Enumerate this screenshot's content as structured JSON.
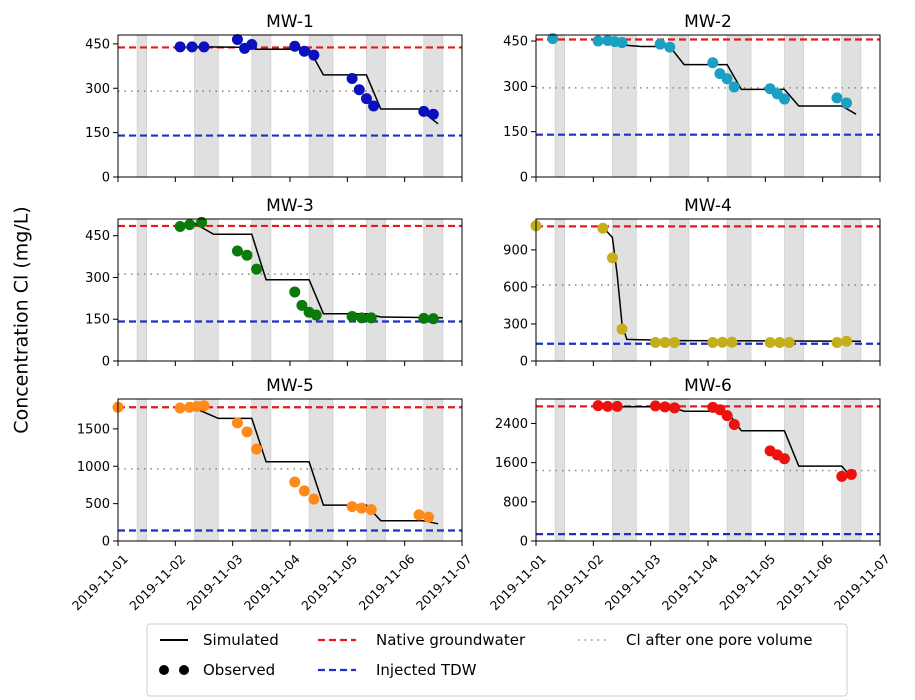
{
  "figure": {
    "ylabel": "Concentration Cl (mg/L)"
  },
  "x_axis": {
    "ticks": [
      "2019-11-01",
      "2019-11-02",
      "2019-11-03",
      "2019-11-04",
      "2019-11-05",
      "2019-11-06",
      "2019-11-07"
    ],
    "range": [
      "2019-11-01",
      "2019-11-07"
    ]
  },
  "shaded_intervals": [
    [
      "2019-11-01 08:00",
      "2019-11-01 12:00"
    ],
    [
      "2019-11-02 08:00",
      "2019-11-02 18:00"
    ],
    [
      "2019-11-03 08:00",
      "2019-11-03 16:00"
    ],
    [
      "2019-11-04 08:00",
      "2019-11-04 18:00"
    ],
    [
      "2019-11-05 08:00",
      "2019-11-05 16:00"
    ],
    [
      "2019-11-06 08:00",
      "2019-11-06 16:00"
    ]
  ],
  "colors": {
    "native": "#e41a1c",
    "injected": "#1f2fc6",
    "pore": "#888888",
    "simulated": "#000000",
    "shade": "#e0e0e0",
    "MW-1": "#0a10c0",
    "MW-2": "#1ba0c4",
    "MW-3": "#0a7a0a",
    "MW-4": "#c4ae1a",
    "MW-5": "#ff8a1a",
    "MW-6": "#ee0f0f"
  },
  "legend": {
    "simulated": "Simulated",
    "observed": "Observed",
    "native": "Native groundwater",
    "injected": "Injected TDW",
    "pore": "Cl after one pore volume"
  },
  "chart_data": [
    {
      "type": "line",
      "title": "MW-1",
      "ylim": [
        0,
        480
      ],
      "yticks": [
        "0",
        "150",
        "300",
        "450"
      ],
      "ytick_values": [
        0,
        150,
        300,
        450
      ],
      "native": 438,
      "injected": 140,
      "pore": 290,
      "simulated": [
        [
          "2019-11-02 08:00",
          440
        ],
        [
          "2019-11-03 08:00",
          438
        ],
        [
          "2019-11-03 09:30",
          432
        ],
        [
          "2019-11-04 08:00",
          432
        ],
        [
          "2019-11-04 14:00",
          345
        ],
        [
          "2019-11-05 08:00",
          345
        ],
        [
          "2019-11-05 14:00",
          230
        ],
        [
          "2019-11-06 06:00",
          230
        ],
        [
          "2019-11-06 14:00",
          180
        ]
      ],
      "observed": [
        [
          "2019-11-02 02:00",
          440
        ],
        [
          "2019-11-02 07:00",
          440
        ],
        [
          "2019-11-02 12:00",
          440
        ],
        [
          "2019-11-03 02:00",
          465
        ],
        [
          "2019-11-03 05:00",
          435
        ],
        [
          "2019-11-03 08:00",
          448
        ],
        [
          "2019-11-04 02:00",
          442
        ],
        [
          "2019-11-04 06:00",
          425
        ],
        [
          "2019-11-04 10:00",
          412
        ],
        [
          "2019-11-05 02:00",
          333
        ],
        [
          "2019-11-05 05:00",
          295
        ],
        [
          "2019-11-05 08:00",
          265
        ],
        [
          "2019-11-05 11:00",
          240
        ],
        [
          "2019-11-06 08:00",
          222
        ],
        [
          "2019-11-06 12:00",
          212
        ]
      ]
    },
    {
      "type": "line",
      "title": "MW-2",
      "ylim": [
        0,
        470
      ],
      "yticks": [
        "0",
        "150",
        "300",
        "450"
      ],
      "ytick_values": [
        0,
        150,
        300,
        450
      ],
      "native": 455,
      "injected": 140,
      "pore": 295,
      "simulated": [
        [
          "2019-11-02 08:00",
          440
        ],
        [
          "2019-11-02 20:00",
          432
        ],
        [
          "2019-11-03 08:00",
          432
        ],
        [
          "2019-11-03 14:00",
          372
        ],
        [
          "2019-11-04 08:00",
          372
        ],
        [
          "2019-11-04 14:00",
          290
        ],
        [
          "2019-11-05 08:00",
          290
        ],
        [
          "2019-11-05 14:00",
          235
        ],
        [
          "2019-11-06 08:00",
          235
        ],
        [
          "2019-11-06 14:00",
          208
        ]
      ],
      "observed": [
        [
          "2019-11-01 07:00",
          458
        ],
        [
          "2019-11-02 02:00",
          450
        ],
        [
          "2019-11-02 06:00",
          452
        ],
        [
          "2019-11-02 09:00",
          448
        ],
        [
          "2019-11-02 12:00",
          445
        ],
        [
          "2019-11-03 04:00",
          440
        ],
        [
          "2019-11-03 08:00",
          430
        ],
        [
          "2019-11-04 02:00",
          378
        ],
        [
          "2019-11-04 05:00",
          342
        ],
        [
          "2019-11-04 08:00",
          325
        ],
        [
          "2019-11-04 11:00",
          298
        ],
        [
          "2019-11-05 02:00",
          292
        ],
        [
          "2019-11-05 05:00",
          275
        ],
        [
          "2019-11-05 08:00",
          258
        ],
        [
          "2019-11-06 06:00",
          262
        ],
        [
          "2019-11-06 10:00",
          245
        ]
      ]
    },
    {
      "type": "line",
      "title": "MW-3",
      "ylim": [
        0,
        510
      ],
      "yticks": [
        "0",
        "150",
        "300",
        "450"
      ],
      "ytick_values": [
        0,
        150,
        300,
        450
      ],
      "native": 485,
      "injected": 142,
      "pore": 312,
      "simulated": [
        [
          "2019-11-02 08:00",
          495
        ],
        [
          "2019-11-02 16:00",
          455
        ],
        [
          "2019-11-03 08:00",
          455
        ],
        [
          "2019-11-03 14:00",
          292
        ],
        [
          "2019-11-04 08:00",
          292
        ],
        [
          "2019-11-04 14:00",
          170
        ],
        [
          "2019-11-05 08:00",
          170
        ],
        [
          "2019-11-05 14:00",
          158
        ],
        [
          "2019-11-06 16:00",
          155
        ]
      ],
      "observed": [
        [
          "2019-11-02 02:00",
          483
        ],
        [
          "2019-11-02 06:00",
          490
        ],
        [
          "2019-11-02 11:00",
          498
        ],
        [
          "2019-11-03 02:00",
          395
        ],
        [
          "2019-11-03 06:00",
          380
        ],
        [
          "2019-11-03 10:00",
          330
        ],
        [
          "2019-11-04 02:00",
          248
        ],
        [
          "2019-11-04 05:00",
          200
        ],
        [
          "2019-11-04 08:00",
          175
        ],
        [
          "2019-11-04 11:00",
          165
        ],
        [
          "2019-11-05 02:00",
          160
        ],
        [
          "2019-11-05 06:00",
          155
        ],
        [
          "2019-11-05 10:00",
          155
        ],
        [
          "2019-11-06 08:00",
          153
        ],
        [
          "2019-11-06 12:00",
          152
        ]
      ]
    },
    {
      "type": "line",
      "title": "MW-4",
      "ylim": [
        0,
        1150
      ],
      "yticks": [
        "0",
        "300",
        "600",
        "900"
      ],
      "ytick_values": [
        0,
        300,
        600,
        900
      ],
      "native": 1090,
      "injected": 140,
      "pore": 615,
      "simulated": [
        [
          "2019-11-02 04:00",
          1085
        ],
        [
          "2019-11-02 08:00",
          1000
        ],
        [
          "2019-11-02 10:00",
          700
        ],
        [
          "2019-11-02 12:00",
          300
        ],
        [
          "2019-11-02 14:00",
          175
        ],
        [
          "2019-11-03 12:00",
          165
        ],
        [
          "2019-11-06 16:00",
          160
        ]
      ],
      "observed": [
        [
          "2019-11-01 00:00",
          1095
        ],
        [
          "2019-11-02 04:00",
          1075
        ],
        [
          "2019-11-02 08:00",
          835
        ],
        [
          "2019-11-02 12:00",
          258
        ],
        [
          "2019-11-03 02:00",
          150
        ],
        [
          "2019-11-03 06:00",
          150
        ],
        [
          "2019-11-03 10:00",
          150
        ],
        [
          "2019-11-04 02:00",
          150
        ],
        [
          "2019-11-04 06:00",
          152
        ],
        [
          "2019-11-04 10:00",
          152
        ],
        [
          "2019-11-05 02:00",
          150
        ],
        [
          "2019-11-05 06:00",
          150
        ],
        [
          "2019-11-05 10:00",
          150
        ],
        [
          "2019-11-06 06:00",
          150
        ],
        [
          "2019-11-06 10:00",
          160
        ]
      ]
    },
    {
      "type": "line",
      "title": "MW-5",
      "ylim": [
        0,
        1900
      ],
      "yticks": [
        "0",
        "500",
        "1000",
        "1500"
      ],
      "ytick_values": [
        0,
        500,
        1000,
        1500
      ],
      "native": 1790,
      "injected": 140,
      "pore": 965,
      "simulated": [
        [
          "2019-11-02 08:00",
          1780
        ],
        [
          "2019-11-02 18:00",
          1640
        ],
        [
          "2019-11-03 08:00",
          1640
        ],
        [
          "2019-11-03 14:00",
          1060
        ],
        [
          "2019-11-04 08:00",
          1060
        ],
        [
          "2019-11-04 14:00",
          480
        ],
        [
          "2019-11-05 08:00",
          480
        ],
        [
          "2019-11-05 14:00",
          270
        ],
        [
          "2019-11-06 08:00",
          270
        ],
        [
          "2019-11-06 14:00",
          230
        ]
      ],
      "observed": [
        [
          "2019-11-01 00:00",
          1790
        ],
        [
          "2019-11-02 02:00",
          1780
        ],
        [
          "2019-11-02 06:00",
          1790
        ],
        [
          "2019-11-02 09:00",
          1800
        ],
        [
          "2019-11-02 12:00",
          1810
        ],
        [
          "2019-11-03 02:00",
          1580
        ],
        [
          "2019-11-03 06:00",
          1460
        ],
        [
          "2019-11-03 10:00",
          1230
        ],
        [
          "2019-11-04 02:00",
          790
        ],
        [
          "2019-11-04 06:00",
          670
        ],
        [
          "2019-11-04 10:00",
          560
        ],
        [
          "2019-11-05 02:00",
          460
        ],
        [
          "2019-11-05 06:00",
          440
        ],
        [
          "2019-11-05 10:00",
          420
        ],
        [
          "2019-11-06 06:00",
          350
        ],
        [
          "2019-11-06 10:00",
          320
        ]
      ]
    },
    {
      "type": "line",
      "title": "MW-6",
      "ylim": [
        0,
        2900
      ],
      "yticks": [
        "0",
        "800",
        "1600",
        "2400"
      ],
      "ytick_values": [
        0,
        800,
        1600,
        2400
      ],
      "native": 2750,
      "injected": 140,
      "pore": 1440,
      "simulated": [
        [
          "2019-11-02 08:00",
          2740
        ],
        [
          "2019-11-03 08:00",
          2740
        ],
        [
          "2019-11-03 14:00",
          2650
        ],
        [
          "2019-11-04 08:00",
          2650
        ],
        [
          "2019-11-04 14:00",
          2250
        ],
        [
          "2019-11-05 08:00",
          2250
        ],
        [
          "2019-11-05 14:00",
          1530
        ],
        [
          "2019-11-06 08:00",
          1530
        ],
        [
          "2019-11-06 12:00",
          1300
        ]
      ],
      "observed": [
        [
          "2019-11-02 02:00",
          2765
        ],
        [
          "2019-11-02 06:00",
          2750
        ],
        [
          "2019-11-02 10:00",
          2750
        ],
        [
          "2019-11-03 02:00",
          2760
        ],
        [
          "2019-11-03 06:00",
          2740
        ],
        [
          "2019-11-03 10:00",
          2720
        ],
        [
          "2019-11-04 02:00",
          2730
        ],
        [
          "2019-11-04 05:00",
          2680
        ],
        [
          "2019-11-04 08:00",
          2560
        ],
        [
          "2019-11-04 11:00",
          2380
        ],
        [
          "2019-11-05 02:00",
          1840
        ],
        [
          "2019-11-05 05:00",
          1760
        ],
        [
          "2019-11-05 08:00",
          1680
        ],
        [
          "2019-11-06 08:00",
          1320
        ],
        [
          "2019-11-06 12:00",
          1360
        ]
      ]
    }
  ]
}
